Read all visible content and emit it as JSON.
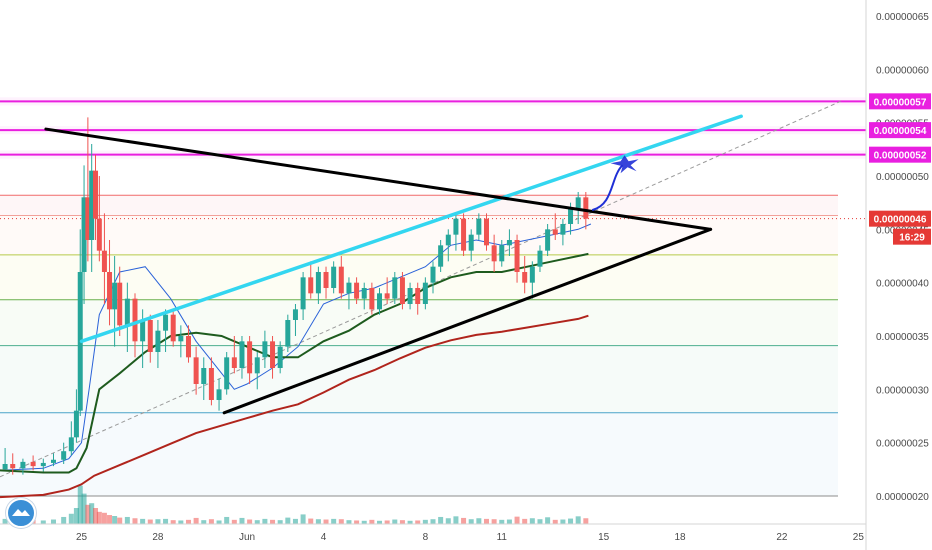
{
  "chart_data": {
    "type": "candlestick",
    "price_axis_labels": [
      "0.00000065",
      "0.00000060",
      "0.00000055",
      "0.00000050",
      "0.00000045",
      "0.00000040",
      "0.00000035",
      "0.00000030",
      "0.00000025",
      "0.00000020"
    ],
    "price_ticks": [
      65,
      60,
      55,
      50,
      45,
      40,
      35,
      30,
      25,
      20
    ],
    "time_axis_labels": [
      "25",
      "28",
      "Jun",
      "4",
      "8",
      "11",
      "15",
      "18",
      "22",
      "25"
    ],
    "time_ticks": [
      3.5,
      6.5,
      10,
      13,
      17,
      20,
      24,
      27,
      31,
      34
    ],
    "ylim": [
      18,
      68
    ],
    "xlim": [
      0.3,
      34.3
    ],
    "level_badges": [
      {
        "label": "0.00000057",
        "value": 57.0,
        "color": "#e91fe0"
      },
      {
        "label": "0.00000054",
        "value": 54.3,
        "color": "#e91fe0"
      },
      {
        "label": "0.00000052",
        "value": 52.0,
        "color": "#e91fe0"
      },
      {
        "label": "0.00000046",
        "value": 46.0,
        "color": "#e53935"
      }
    ],
    "countdown": "16:29",
    "fib_levels": [
      {
        "value": 48.2,
        "color": "#f06a6a"
      },
      {
        "value": 46.3,
        "color": "#f2a19a"
      },
      {
        "value": 42.6,
        "color": "#b6c94a"
      },
      {
        "value": 38.4,
        "color": "#6ab04c"
      },
      {
        "value": 34.1,
        "color": "#4caf8f"
      },
      {
        "value": 27.8,
        "color": "#4aa3c9"
      },
      {
        "value": 20.0,
        "color": "#8c8c8c"
      }
    ],
    "trendlines": [
      {
        "name": "upper",
        "color": "#000000",
        "points": [
          [
            2.1,
            54.4
          ],
          [
            28.2,
            45.0
          ]
        ]
      },
      {
        "name": "lower",
        "color": "#000000",
        "points": [
          [
            9.1,
            27.8
          ],
          [
            28.2,
            45.0
          ]
        ]
      },
      {
        "name": "channel",
        "color": "#33d6f0",
        "points": [
          [
            3.5,
            34.5
          ],
          [
            29.4,
            55.6
          ]
        ]
      },
      {
        "name": "diagonal",
        "color": "#9a9a9a",
        "points": [
          [
            0.3,
            21.8
          ],
          [
            33.3,
            57.0
          ]
        ]
      }
    ],
    "ma_series": [
      {
        "name": "fast",
        "color": "#2a62d8",
        "points": [
          [
            0.3,
            22.4
          ],
          [
            2,
            22.6
          ],
          [
            3,
            23.5
          ],
          [
            3.5,
            25
          ],
          [
            3.8,
            30
          ],
          [
            4.2,
            37
          ],
          [
            5,
            41
          ],
          [
            6,
            41.5
          ],
          [
            7,
            38.5
          ],
          [
            8,
            34.5
          ],
          [
            9,
            31.5
          ],
          [
            9.5,
            30
          ],
          [
            10,
            30.5
          ],
          [
            11,
            32
          ],
          [
            12,
            34
          ],
          [
            13,
            38
          ],
          [
            14,
            39
          ],
          [
            15,
            39.5
          ],
          [
            16,
            40.5
          ],
          [
            17,
            41.5
          ],
          [
            18,
            43.5
          ],
          [
            19,
            44
          ],
          [
            20,
            43.5
          ],
          [
            21,
            44
          ],
          [
            22,
            44.5
          ],
          [
            23,
            45
          ],
          [
            23.5,
            45.5
          ]
        ]
      },
      {
        "name": "medium",
        "color": "#1e5b1e",
        "points": [
          [
            0.3,
            22.4
          ],
          [
            2,
            22.2
          ],
          [
            3,
            22.2
          ],
          [
            3.3,
            22.6
          ],
          [
            3.7,
            24.5
          ],
          [
            4.2,
            30
          ],
          [
            5,
            31.5
          ],
          [
            6,
            33.5
          ],
          [
            7,
            35
          ],
          [
            8,
            35.3
          ],
          [
            9,
            35
          ],
          [
            10,
            34
          ],
          [
            11,
            33
          ],
          [
            12,
            33
          ],
          [
            13,
            34.5
          ],
          [
            14,
            35.5
          ],
          [
            15,
            37
          ],
          [
            16,
            38
          ],
          [
            17,
            39.5
          ],
          [
            18,
            40.5
          ],
          [
            19,
            41
          ],
          [
            20,
            41
          ],
          [
            21,
            41.5
          ],
          [
            22,
            42
          ],
          [
            23,
            42.5
          ],
          [
            23.4,
            42.7
          ]
        ]
      },
      {
        "name": "slow",
        "color": "#b0241c",
        "points": [
          [
            0.3,
            19.9
          ],
          [
            2,
            20.1
          ],
          [
            3,
            20.6
          ],
          [
            3.5,
            21.1
          ],
          [
            4,
            21.9
          ],
          [
            5,
            22.9
          ],
          [
            6,
            23.9
          ],
          [
            7,
            24.9
          ],
          [
            8,
            25.9
          ],
          [
            9,
            26.6
          ],
          [
            10,
            27.3
          ],
          [
            11,
            28.0
          ],
          [
            12,
            28.6
          ],
          [
            13,
            29.7
          ],
          [
            14,
            30.9
          ],
          [
            15,
            31.8
          ],
          [
            16,
            32.9
          ],
          [
            17,
            33.9
          ],
          [
            18,
            34.6
          ],
          [
            19,
            35.1
          ],
          [
            20,
            35.4
          ],
          [
            21,
            35.8
          ],
          [
            22,
            36.2
          ],
          [
            23,
            36.6
          ],
          [
            23.4,
            36.9
          ]
        ]
      }
    ],
    "candles": [
      [
        0.5,
        22.5,
        24.5,
        22.5,
        23.0
      ],
      [
        0.8,
        23.0,
        24.0,
        22.0,
        22.6
      ],
      [
        1.2,
        22.6,
        23.5,
        22.0,
        23.2
      ],
      [
        1.6,
        23.2,
        23.8,
        22.4,
        22.8
      ],
      [
        2.0,
        22.8,
        23.5,
        22.3,
        23.1
      ],
      [
        2.4,
        23.1,
        24.0,
        22.8,
        23.4
      ],
      [
        2.8,
        23.4,
        25.0,
        23.0,
        24.2
      ],
      [
        3.1,
        24.2,
        27.0,
        23.8,
        25.5
      ],
      [
        3.3,
        25.5,
        30.0,
        25.0,
        28.0
      ],
      [
        3.45,
        28.0,
        45.0,
        27.5,
        41.0
      ],
      [
        3.6,
        41.0,
        51.0,
        38.0,
        48.0
      ],
      [
        3.75,
        48.0,
        55.5,
        42.0,
        44.0
      ],
      [
        3.9,
        44.0,
        53.0,
        41.0,
        50.5
      ],
      [
        4.05,
        50.5,
        52.0,
        44.0,
        46.0
      ],
      [
        4.2,
        46.0,
        50.0,
        42.0,
        43.0
      ],
      [
        4.4,
        43.0,
        46.5,
        38.0,
        41.0
      ],
      [
        4.6,
        41.0,
        44.0,
        36.0,
        37.5
      ],
      [
        4.8,
        37.5,
        42.5,
        34.0,
        40.0
      ],
      [
        5.0,
        40.0,
        41.5,
        35.0,
        36.0
      ],
      [
        5.3,
        36.0,
        40.0,
        33.5,
        38.5
      ],
      [
        5.6,
        38.5,
        39.0,
        33.0,
        34.5
      ],
      [
        5.9,
        34.5,
        37.5,
        32.0,
        36.5
      ],
      [
        6.2,
        36.5,
        37.0,
        32.5,
        33.5
      ],
      [
        6.5,
        33.5,
        36.5,
        32.0,
        35.5
      ],
      [
        6.8,
        35.5,
        37.5,
        33.5,
        37.0
      ],
      [
        7.1,
        37.0,
        37.5,
        34.0,
        34.5
      ],
      [
        7.4,
        34.5,
        36.0,
        33.0,
        35.0
      ],
      [
        7.7,
        35.0,
        36.0,
        32.5,
        33.0
      ],
      [
        8.0,
        33.0,
        34.0,
        29.5,
        30.5
      ],
      [
        8.3,
        30.5,
        33.0,
        29.0,
        32.0
      ],
      [
        8.6,
        32.0,
        33.0,
        28.5,
        29.0
      ],
      [
        8.9,
        29.0,
        31.0,
        28.0,
        30.0
      ],
      [
        9.2,
        30.0,
        33.5,
        29.5,
        33.0
      ],
      [
        9.5,
        33.0,
        35.0,
        31.5,
        32.0
      ],
      [
        9.8,
        32.0,
        35.0,
        31.0,
        34.5
      ],
      [
        10.1,
        34.5,
        35.0,
        30.5,
        31.5
      ],
      [
        10.4,
        31.5,
        33.5,
        30.0,
        33.0
      ],
      [
        10.7,
        33.0,
        35.5,
        32.0,
        34.5
      ],
      [
        11.0,
        34.5,
        35.0,
        31.0,
        32.0
      ],
      [
        11.3,
        32.0,
        34.5,
        31.5,
        34.0
      ],
      [
        11.6,
        34.0,
        37.0,
        33.5,
        36.5
      ],
      [
        11.9,
        36.5,
        38.0,
        35.0,
        37.5
      ],
      [
        12.2,
        37.5,
        41.0,
        36.5,
        40.5
      ],
      [
        12.5,
        40.5,
        42.0,
        38.5,
        39.0
      ],
      [
        12.8,
        39.0,
        41.5,
        38.0,
        41.0
      ],
      [
        13.1,
        41.0,
        41.5,
        38.5,
        39.5
      ],
      [
        13.4,
        39.5,
        42.0,
        39.0,
        41.5
      ],
      [
        13.7,
        41.5,
        42.5,
        38.5,
        39.0
      ],
      [
        14.0,
        39.0,
        40.5,
        37.5,
        40.0
      ],
      [
        14.3,
        40.0,
        40.5,
        38.0,
        38.5
      ],
      [
        14.6,
        38.5,
        40.0,
        37.5,
        39.5
      ],
      [
        14.9,
        39.5,
        40.0,
        37.0,
        37.5
      ],
      [
        15.2,
        37.5,
        39.5,
        37.0,
        39.0
      ],
      [
        15.5,
        39.0,
        40.5,
        38.0,
        38.5
      ],
      [
        15.8,
        38.5,
        41.0,
        38.0,
        40.5
      ],
      [
        16.1,
        40.5,
        41.0,
        37.5,
        38.0
      ],
      [
        16.4,
        38.0,
        40.0,
        37.5,
        39.5
      ],
      [
        16.7,
        39.5,
        40.0,
        37.0,
        38.0
      ],
      [
        17.0,
        38.0,
        40.5,
        37.5,
        40.0
      ],
      [
        17.3,
        40.0,
        42.0,
        39.0,
        41.5
      ],
      [
        17.6,
        41.5,
        44.0,
        41.0,
        43.5
      ],
      [
        17.9,
        43.5,
        45.0,
        42.0,
        44.5
      ],
      [
        18.2,
        44.5,
        46.5,
        43.0,
        46.0
      ],
      [
        18.5,
        46.0,
        46.5,
        42.5,
        43.0
      ],
      [
        18.8,
        43.0,
        45.0,
        42.0,
        44.5
      ],
      [
        19.1,
        44.5,
        46.5,
        44.0,
        46.0
      ],
      [
        19.4,
        46.0,
        46.5,
        43.0,
        43.5
      ],
      [
        19.7,
        43.5,
        44.5,
        41.0,
        42.0
      ],
      [
        20.0,
        42.0,
        44.0,
        41.5,
        43.5
      ],
      [
        20.3,
        43.5,
        45.0,
        42.5,
        44.0
      ],
      [
        20.6,
        44.0,
        44.5,
        40.0,
        41.0
      ],
      [
        20.9,
        41.0,
        42.5,
        39.0,
        40.0
      ],
      [
        21.2,
        40.0,
        42.0,
        38.5,
        41.5
      ],
      [
        21.5,
        41.5,
        43.5,
        41.0,
        43.0
      ],
      [
        21.8,
        43.0,
        45.5,
        42.5,
        45.0
      ],
      [
        22.1,
        45.0,
        46.5,
        44.0,
        44.5
      ],
      [
        22.4,
        44.5,
        46.0,
        43.5,
        45.5
      ],
      [
        22.7,
        45.5,
        47.5,
        44.5,
        47.0
      ],
      [
        23.0,
        47.0,
        48.5,
        45.5,
        48.0
      ],
      [
        23.3,
        48.0,
        48.5,
        45.0,
        46.0
      ]
    ],
    "volumes": [
      [
        0.5,
        1.6,
        "u"
      ],
      [
        0.8,
        1.2,
        "d"
      ],
      [
        1.2,
        1.0,
        "u"
      ],
      [
        1.6,
        1.3,
        "d"
      ],
      [
        2.0,
        1.1,
        "u"
      ],
      [
        2.4,
        1.4,
        "u"
      ],
      [
        2.8,
        2.2,
        "u"
      ],
      [
        3.1,
        3.2,
        "u"
      ],
      [
        3.3,
        5.0,
        "u"
      ],
      [
        3.45,
        12.0,
        "u"
      ],
      [
        3.6,
        9.5,
        "u"
      ],
      [
        3.75,
        6.0,
        "d"
      ],
      [
        3.9,
        6.5,
        "u"
      ],
      [
        4.05,
        5.0,
        "d"
      ],
      [
        4.2,
        3.8,
        "d"
      ],
      [
        4.4,
        3.5,
        "d"
      ],
      [
        4.6,
        2.8,
        "d"
      ],
      [
        4.8,
        2.5,
        "u"
      ],
      [
        5.0,
        2.0,
        "d"
      ],
      [
        5.3,
        2.2,
        "u"
      ],
      [
        5.6,
        1.8,
        "d"
      ],
      [
        5.9,
        1.6,
        "u"
      ],
      [
        6.2,
        1.4,
        "d"
      ],
      [
        6.5,
        1.5,
        "u"
      ],
      [
        6.8,
        1.6,
        "u"
      ],
      [
        7.1,
        1.2,
        "d"
      ],
      [
        7.4,
        1.1,
        "u"
      ],
      [
        7.7,
        1.3,
        "d"
      ],
      [
        8.0,
        1.9,
        "d"
      ],
      [
        8.3,
        1.2,
        "u"
      ],
      [
        8.6,
        1.5,
        "d"
      ],
      [
        8.9,
        1.1,
        "u"
      ],
      [
        9.2,
        2.2,
        "u"
      ],
      [
        9.5,
        1.3,
        "d"
      ],
      [
        9.8,
        1.9,
        "u"
      ],
      [
        10.1,
        1.4,
        "d"
      ],
      [
        10.4,
        1.2,
        "u"
      ],
      [
        10.7,
        1.6,
        "u"
      ],
      [
        11.0,
        1.3,
        "d"
      ],
      [
        11.3,
        1.2,
        "u"
      ],
      [
        11.6,
        2.0,
        "u"
      ],
      [
        11.9,
        1.6,
        "u"
      ],
      [
        12.2,
        3.0,
        "u"
      ],
      [
        12.5,
        1.7,
        "d"
      ],
      [
        12.8,
        1.5,
        "u"
      ],
      [
        13.1,
        1.4,
        "d"
      ],
      [
        13.4,
        1.6,
        "u"
      ],
      [
        13.7,
        1.5,
        "d"
      ],
      [
        14.0,
        1.2,
        "u"
      ],
      [
        14.3,
        1.1,
        "d"
      ],
      [
        14.6,
        1.0,
        "u"
      ],
      [
        14.9,
        1.3,
        "d"
      ],
      [
        15.2,
        1.0,
        "u"
      ],
      [
        15.5,
        1.1,
        "d"
      ],
      [
        15.8,
        1.4,
        "u"
      ],
      [
        16.1,
        1.2,
        "d"
      ],
      [
        16.4,
        1.0,
        "u"
      ],
      [
        16.7,
        1.1,
        "d"
      ],
      [
        17.0,
        1.3,
        "u"
      ],
      [
        17.3,
        1.5,
        "u"
      ],
      [
        17.6,
        2.2,
        "u"
      ],
      [
        17.9,
        1.8,
        "u"
      ],
      [
        18.2,
        2.4,
        "u"
      ],
      [
        18.5,
        1.9,
        "d"
      ],
      [
        18.8,
        1.5,
        "u"
      ],
      [
        19.1,
        1.8,
        "u"
      ],
      [
        19.4,
        1.6,
        "d"
      ],
      [
        19.7,
        1.5,
        "d"
      ],
      [
        20.0,
        1.3,
        "u"
      ],
      [
        20.3,
        1.4,
        "u"
      ],
      [
        20.6,
        2.3,
        "d"
      ],
      [
        20.9,
        1.6,
        "d"
      ],
      [
        21.2,
        1.8,
        "u"
      ],
      [
        21.5,
        1.5,
        "u"
      ],
      [
        21.8,
        2.1,
        "u"
      ],
      [
        22.1,
        1.3,
        "d"
      ],
      [
        22.4,
        1.4,
        "u"
      ],
      [
        22.7,
        1.7,
        "u"
      ],
      [
        23.0,
        2.4,
        "u"
      ],
      [
        23.3,
        1.8,
        "d"
      ]
    ],
    "colors": {
      "up": "#26a69a",
      "down": "#ef5350",
      "magenta": "#e91fe0",
      "triangle": "#000000",
      "channel": "#33d6f0",
      "forecast_arrow": "#1f2fd6",
      "axis_text": "#4a4a4a",
      "badge_text": "#ffffff",
      "countdown_bg": "#e53935",
      "logo_bg": "#3a8fd6"
    },
    "icons": {
      "logo": "tradingview-logo-icon",
      "target": "target-star-icon",
      "arrow": "forecast-arrow-icon"
    }
  }
}
